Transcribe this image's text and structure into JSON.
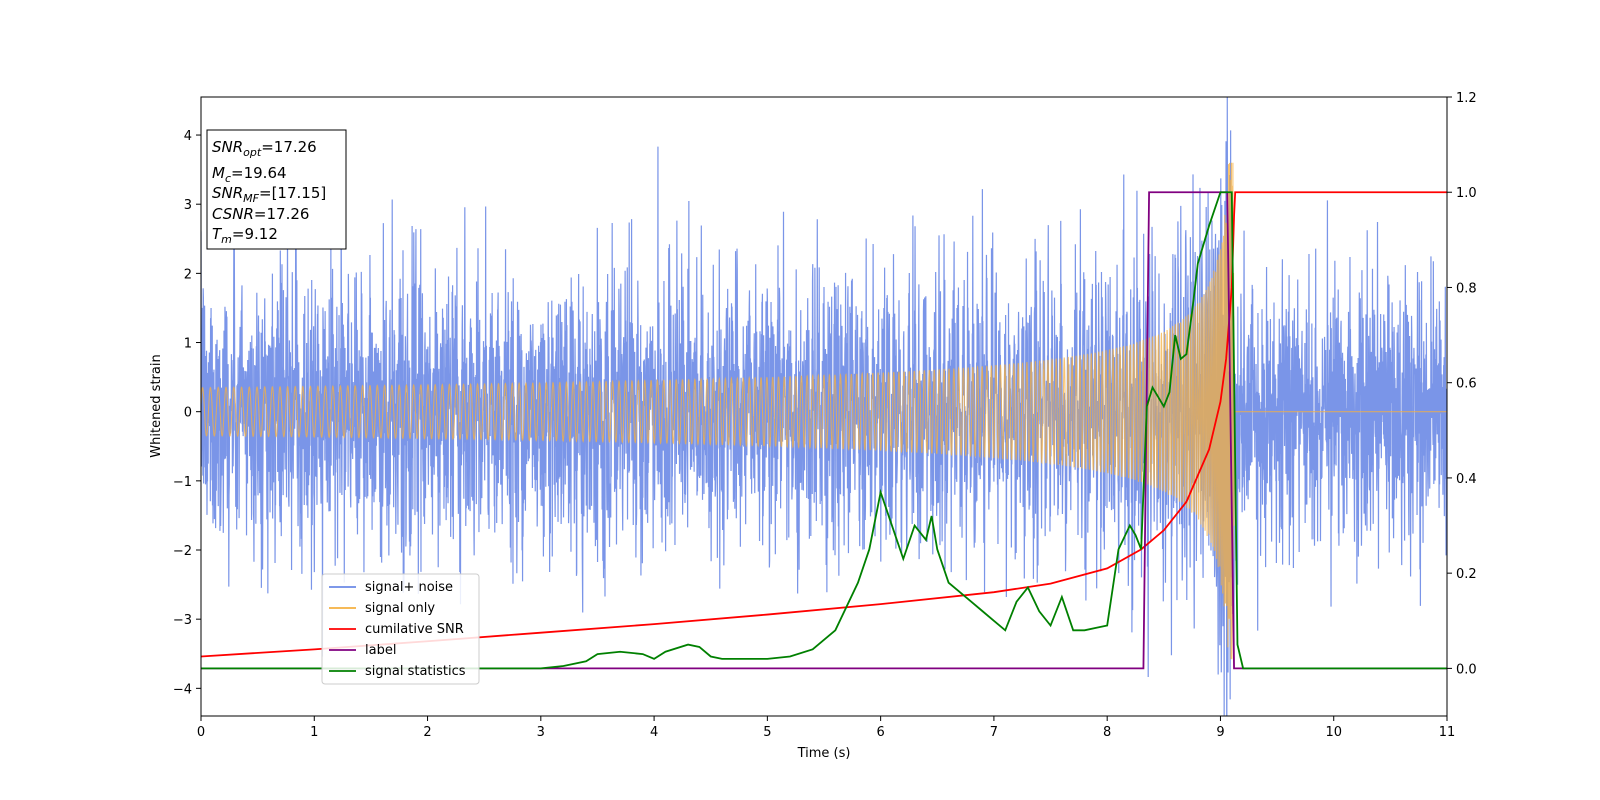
{
  "chart_data": {
    "type": "line",
    "xlabel": "Time (s)",
    "ylabel": "Whitened strain",
    "xlim": [
      0,
      11
    ],
    "ylim_left": [
      -4.4,
      4.55
    ],
    "ylim_right": [
      -0.1,
      1.2
    ],
    "x_ticks": [
      0,
      1,
      2,
      3,
      4,
      5,
      6,
      7,
      8,
      9,
      10,
      11
    ],
    "y_ticks_left": [
      -4,
      -3,
      -2,
      -1,
      0,
      1,
      2,
      3,
      4
    ],
    "y_ticks_right": [
      "0.0",
      "0.2",
      "0.4",
      "0.6",
      "0.8",
      "1.0",
      "1.2"
    ],
    "legend_position": "lower-left",
    "series": [
      {
        "name": "signal+ noise",
        "axis": "left",
        "color": "#6b8ae6",
        "description_kind": "noise",
        "sigma": 0.9
      },
      {
        "name": "signal only",
        "axis": "left",
        "color": "#f5b041",
        "description_kind": "chirp",
        "t_merge": 9.12,
        "peak_amplitude": 3.6
      },
      {
        "name": "cumilative SNR",
        "axis": "right",
        "color": "#ff0000",
        "x": [
          0,
          1,
          2,
          3,
          4,
          5,
          6,
          7,
          7.5,
          8,
          8.3,
          8.5,
          8.7,
          8.9,
          9.0,
          9.05,
          9.1,
          9.12,
          9.13,
          11
        ],
        "y": [
          0.025,
          0.04,
          0.057,
          0.075,
          0.093,
          0.113,
          0.135,
          0.16,
          0.178,
          0.21,
          0.25,
          0.29,
          0.35,
          0.46,
          0.56,
          0.65,
          0.8,
          0.95,
          1.0,
          1.0
        ]
      },
      {
        "name": "label",
        "axis": "right",
        "color": "#800080",
        "x": [
          0,
          8.32,
          8.37,
          9.06,
          9.12,
          11
        ],
        "y": [
          0,
          0,
          1,
          1,
          0,
          0
        ]
      },
      {
        "name": "signal statistics",
        "axis": "right",
        "color": "#008000",
        "x": [
          0,
          0.3,
          1,
          2,
          3,
          3.2,
          3.4,
          3.5,
          3.7,
          3.9,
          4.0,
          4.1,
          4.3,
          4.4,
          4.5,
          4.6,
          4.7,
          4.8,
          4.9,
          5.0,
          5.2,
          5.4,
          5.6,
          5.8,
          5.9,
          6.0,
          6.1,
          6.2,
          6.3,
          6.4,
          6.45,
          6.5,
          6.6,
          6.7,
          6.8,
          6.9,
          7.0,
          7.1,
          7.2,
          7.3,
          7.4,
          7.5,
          7.6,
          7.7,
          7.8,
          7.9,
          8.0,
          8.1,
          8.2,
          8.25,
          8.3,
          8.35,
          8.4,
          8.5,
          8.55,
          8.6,
          8.65,
          8.7,
          8.75,
          8.8,
          8.9,
          9.0,
          9.05,
          9.1,
          9.15,
          9.2,
          11
        ],
        "y": [
          0.0,
          0.0,
          0.0,
          0.0,
          0.0,
          0.005,
          0.015,
          0.03,
          0.035,
          0.03,
          0.02,
          0.035,
          0.05,
          0.045,
          0.025,
          0.02,
          0.02,
          0.02,
          0.02,
          0.02,
          0.025,
          0.04,
          0.08,
          0.18,
          0.25,
          0.37,
          0.3,
          0.23,
          0.3,
          0.27,
          0.32,
          0.25,
          0.18,
          0.16,
          0.14,
          0.12,
          0.1,
          0.08,
          0.14,
          0.17,
          0.12,
          0.09,
          0.15,
          0.08,
          0.08,
          0.085,
          0.09,
          0.25,
          0.3,
          0.28,
          0.25,
          0.55,
          0.59,
          0.55,
          0.58,
          0.7,
          0.65,
          0.66,
          0.75,
          0.85,
          0.93,
          1.0,
          1.0,
          1.0,
          0.05,
          0.0,
          0.0
        ]
      }
    ],
    "annotation_box": {
      "lines": [
        {
          "var": "SNR",
          "sub": "opt",
          "value": "=17.26"
        },
        {
          "var": "M",
          "sub": "c",
          "value": "=19.64"
        },
        {
          "var": "SNR",
          "sub": "MF",
          "value": "=[17.15]"
        },
        {
          "var": "CSNR",
          "sub": "",
          "value": "=17.26"
        },
        {
          "var": "T",
          "sub": "m",
          "value": "=9.12"
        }
      ]
    }
  }
}
